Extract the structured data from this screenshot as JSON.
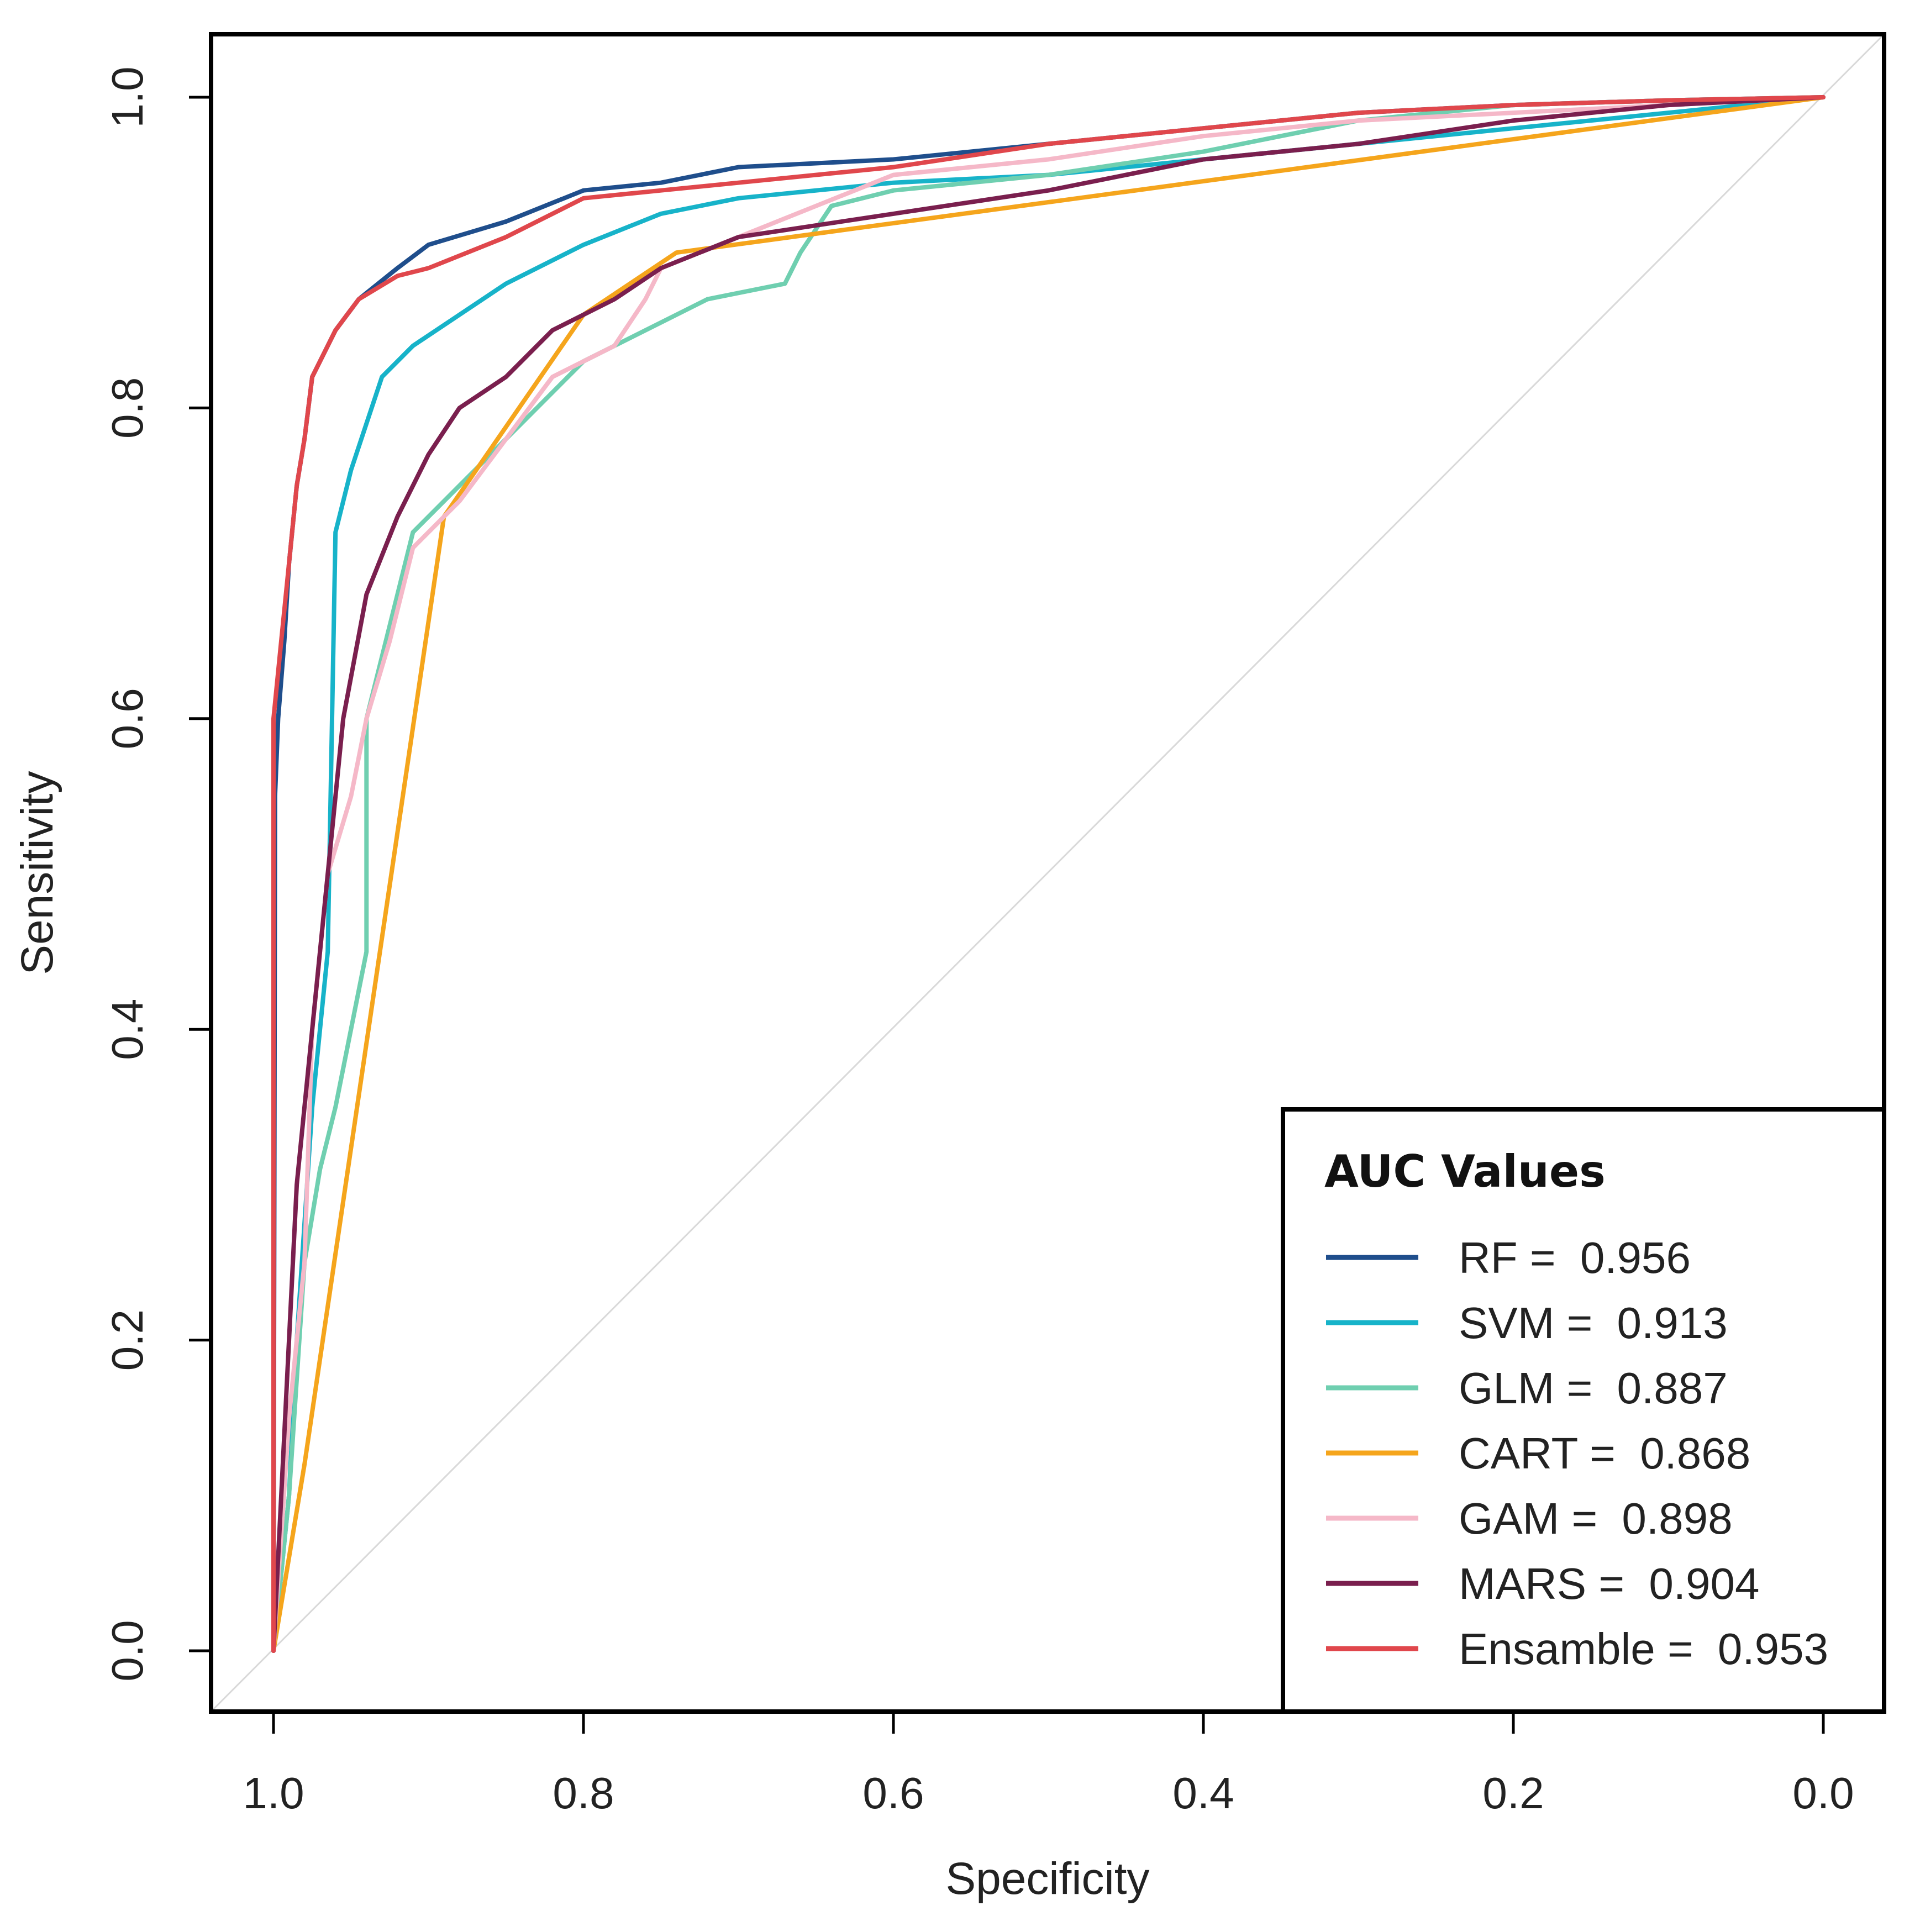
{
  "chart_data": {
    "type": "line",
    "title": "",
    "xlabel": "Specificity",
    "ylabel": "Sensitivity",
    "xlim": [
      1.0,
      0.0
    ],
    "ylim": [
      0.0,
      1.0
    ],
    "x_reversed": true,
    "x_ticks": [
      1.0,
      0.8,
      0.6,
      0.4,
      0.2,
      0.0
    ],
    "x_tick_labels": [
      "1.0",
      "0.8",
      "0.6",
      "0.4",
      "0.2",
      "0.0"
    ],
    "y_ticks": [
      0.0,
      0.2,
      0.4,
      0.6,
      0.8,
      1.0
    ],
    "y_tick_labels": [
      "0.0",
      "0.2",
      "0.4",
      "0.6",
      "0.8",
      "1.0"
    ],
    "grid": false,
    "reference_line": "diagonal",
    "legend": {
      "title": "AUC Values",
      "placement": "bottom-right"
    },
    "series": [
      {
        "name": "RF",
        "label_prefix": "RF = ",
        "auc": "0.956",
        "color": "#1f4e8c",
        "points": [
          [
            1.0,
            0.0
          ],
          [
            0.999,
            0.55
          ],
          [
            0.997,
            0.6
          ],
          [
            0.993,
            0.65
          ],
          [
            0.99,
            0.7
          ],
          [
            0.985,
            0.75
          ],
          [
            0.98,
            0.78
          ],
          [
            0.975,
            0.82
          ],
          [
            0.96,
            0.85
          ],
          [
            0.945,
            0.87
          ],
          [
            0.92,
            0.89
          ],
          [
            0.9,
            0.905
          ],
          [
            0.85,
            0.92
          ],
          [
            0.8,
            0.94
          ],
          [
            0.75,
            0.945
          ],
          [
            0.7,
            0.955
          ],
          [
            0.6,
            0.96
          ],
          [
            0.5,
            0.97
          ],
          [
            0.4,
            0.98
          ],
          [
            0.3,
            0.99
          ],
          [
            0.2,
            0.995
          ],
          [
            0.1,
            0.998
          ],
          [
            0.0,
            1.0
          ]
        ]
      },
      {
        "name": "SVM",
        "label_prefix": "SVM = ",
        "auc": "0.913",
        "color": "#17b3c9",
        "points": [
          [
            1.0,
            0.0
          ],
          [
            0.99,
            0.1
          ],
          [
            0.985,
            0.2
          ],
          [
            0.975,
            0.35
          ],
          [
            0.965,
            0.45
          ],
          [
            0.96,
            0.72
          ],
          [
            0.95,
            0.76
          ],
          [
            0.94,
            0.79
          ],
          [
            0.93,
            0.82
          ],
          [
            0.91,
            0.84
          ],
          [
            0.88,
            0.86
          ],
          [
            0.85,
            0.88
          ],
          [
            0.8,
            0.905
          ],
          [
            0.75,
            0.925
          ],
          [
            0.7,
            0.935
          ],
          [
            0.6,
            0.945
          ],
          [
            0.5,
            0.95
          ],
          [
            0.4,
            0.96
          ],
          [
            0.3,
            0.97
          ],
          [
            0.2,
            0.98
          ],
          [
            0.1,
            0.99
          ],
          [
            0.0,
            1.0
          ]
        ]
      },
      {
        "name": "GLM",
        "label_prefix": "GLM = ",
        "auc": "0.887",
        "color": "#6fcfb0",
        "points": [
          [
            1.0,
            0.0
          ],
          [
            0.99,
            0.1
          ],
          [
            0.98,
            0.25
          ],
          [
            0.97,
            0.31
          ],
          [
            0.96,
            0.35
          ],
          [
            0.94,
            0.45
          ],
          [
            0.94,
            0.6
          ],
          [
            0.925,
            0.66
          ],
          [
            0.91,
            0.72
          ],
          [
            0.88,
            0.75
          ],
          [
            0.85,
            0.78
          ],
          [
            0.8,
            0.83
          ],
          [
            0.76,
            0.85
          ],
          [
            0.72,
            0.87
          ],
          [
            0.67,
            0.88
          ],
          [
            0.66,
            0.9
          ],
          [
            0.64,
            0.93
          ],
          [
            0.6,
            0.94
          ],
          [
            0.5,
            0.95
          ],
          [
            0.4,
            0.965
          ],
          [
            0.3,
            0.985
          ],
          [
            0.2,
            0.995
          ],
          [
            0.1,
            0.998
          ],
          [
            0.0,
            1.0
          ]
        ]
      },
      {
        "name": "CART",
        "label_prefix": "CART = ",
        "auc": "0.868",
        "color": "#f5a51c",
        "points": [
          [
            1.0,
            0.0
          ],
          [
            0.98,
            0.12
          ],
          [
            0.89,
            0.73
          ],
          [
            0.8,
            0.86
          ],
          [
            0.74,
            0.9
          ],
          [
            0.0,
            1.0
          ]
        ]
      },
      {
        "name": "GAM",
        "label_prefix": "GAM = ",
        "auc": "0.898",
        "color": "#f5b8c8",
        "points": [
          [
            1.0,
            0.0
          ],
          [
            0.99,
            0.15
          ],
          [
            0.98,
            0.25
          ],
          [
            0.975,
            0.4
          ],
          [
            0.965,
            0.5
          ],
          [
            0.95,
            0.55
          ],
          [
            0.94,
            0.6
          ],
          [
            0.925,
            0.65
          ],
          [
            0.91,
            0.71
          ],
          [
            0.88,
            0.74
          ],
          [
            0.85,
            0.78
          ],
          [
            0.82,
            0.82
          ],
          [
            0.78,
            0.84
          ],
          [
            0.76,
            0.87
          ],
          [
            0.75,
            0.89
          ],
          [
            0.7,
            0.91
          ],
          [
            0.65,
            0.93
          ],
          [
            0.6,
            0.95
          ],
          [
            0.5,
            0.96
          ],
          [
            0.4,
            0.975
          ],
          [
            0.3,
            0.985
          ],
          [
            0.2,
            0.99
          ],
          [
            0.1,
            0.995
          ],
          [
            0.0,
            1.0
          ]
        ]
      },
      {
        "name": "MARS",
        "label_prefix": "MARS = ",
        "auc": "0.904",
        "color": "#7a1f4e",
        "points": [
          [
            1.0,
            0.0
          ],
          [
            0.99,
            0.2
          ],
          [
            0.985,
            0.3
          ],
          [
            0.975,
            0.4
          ],
          [
            0.965,
            0.5
          ],
          [
            0.955,
            0.6
          ],
          [
            0.94,
            0.68
          ],
          [
            0.92,
            0.73
          ],
          [
            0.9,
            0.77
          ],
          [
            0.88,
            0.8
          ],
          [
            0.85,
            0.82
          ],
          [
            0.82,
            0.85
          ],
          [
            0.78,
            0.87
          ],
          [
            0.75,
            0.89
          ],
          [
            0.7,
            0.91
          ],
          [
            0.6,
            0.925
          ],
          [
            0.5,
            0.94
          ],
          [
            0.4,
            0.96
          ],
          [
            0.3,
            0.97
          ],
          [
            0.2,
            0.985
          ],
          [
            0.1,
            0.995
          ],
          [
            0.0,
            1.0
          ]
        ]
      },
      {
        "name": "Ensamble",
        "label_prefix": "Ensamble = ",
        "auc": "0.953",
        "color": "#e0474c",
        "points": [
          [
            1.0,
            0.0
          ],
          [
            1.0,
            0.6
          ],
          [
            0.995,
            0.65
          ],
          [
            0.99,
            0.7
          ],
          [
            0.985,
            0.75
          ],
          [
            0.98,
            0.78
          ],
          [
            0.975,
            0.82
          ],
          [
            0.96,
            0.85
          ],
          [
            0.945,
            0.87
          ],
          [
            0.92,
            0.885
          ],
          [
            0.9,
            0.89
          ],
          [
            0.85,
            0.91
          ],
          [
            0.8,
            0.935
          ],
          [
            0.75,
            0.94
          ],
          [
            0.7,
            0.945
          ],
          [
            0.6,
            0.955
          ],
          [
            0.5,
            0.97
          ],
          [
            0.4,
            0.98
          ],
          [
            0.3,
            0.99
          ],
          [
            0.2,
            0.995
          ],
          [
            0.1,
            0.998
          ],
          [
            0.0,
            1.0
          ]
        ]
      }
    ]
  }
}
